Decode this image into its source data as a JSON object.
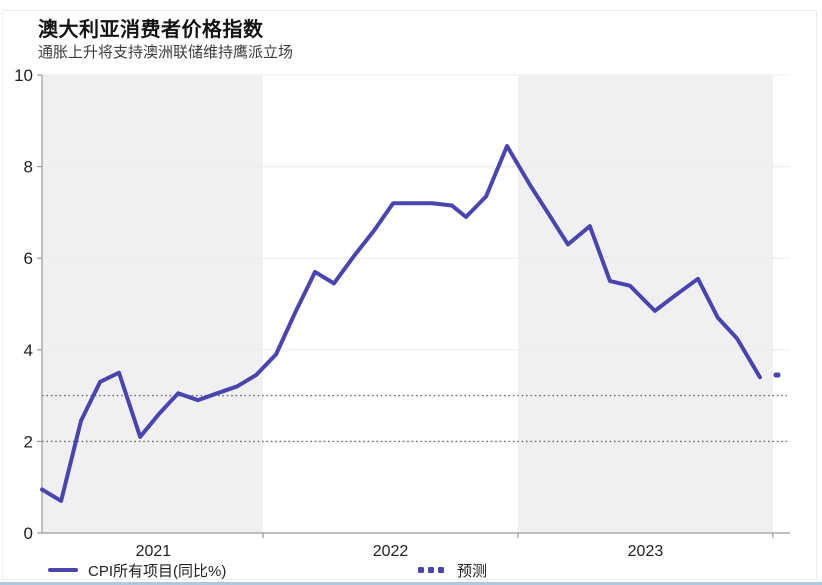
{
  "chart_data": {
    "type": "line",
    "title": "澳大利亚消费者价格指数",
    "subtitle": "通胀上升将支持澳洲联储维持鹰派立场",
    "ylabel": "",
    "xlabel": "",
    "ylim": [
      0,
      10
    ],
    "yticks": [
      0,
      2,
      4,
      6,
      8,
      10
    ],
    "x_range": [
      2021.133,
      2024.067
    ],
    "year_boundaries": [
      2022,
      2023,
      2024
    ],
    "xtick_labels": [
      {
        "label": "2021",
        "center": 2021.57
      },
      {
        "label": "2022",
        "center": 2022.5
      },
      {
        "label": "2023",
        "center": 2023.5
      }
    ],
    "year_bands": [
      [
        2021.133,
        2022
      ],
      [
        2023,
        2024
      ]
    ],
    "reference_lines": [
      2,
      3
    ],
    "grid": "faint-horizontal",
    "legend_position": "bottom",
    "colors": {
      "line": "#4a44b0",
      "band": "#f0f0f1",
      "reference": "#6e6e6e",
      "grid": "#ececec",
      "axis": "#9b9b9b",
      "tick_text": "#1f1f1f"
    },
    "series": [
      {
        "name": "CPI所有项目(同比%)",
        "style": "solid",
        "points": [
          [
            2021.133,
            0.95
          ],
          [
            2021.208,
            0.7
          ],
          [
            2021.286,
            2.45
          ],
          [
            2021.361,
            3.3
          ],
          [
            2021.435,
            3.5
          ],
          [
            2021.518,
            2.1
          ],
          [
            2021.592,
            2.6
          ],
          [
            2021.667,
            3.05
          ],
          [
            2021.745,
            2.9
          ],
          [
            2021.82,
            3.05
          ],
          [
            2021.898,
            3.2
          ],
          [
            2021.973,
            3.45
          ],
          [
            2022.051,
            3.9
          ],
          [
            2022.125,
            4.8
          ],
          [
            2022.204,
            5.7
          ],
          [
            2022.278,
            5.45
          ],
          [
            2022.357,
            6.05
          ],
          [
            2022.435,
            6.6
          ],
          [
            2022.51,
            7.2
          ],
          [
            2022.588,
            7.2
          ],
          [
            2022.663,
            7.2
          ],
          [
            2022.741,
            7.15
          ],
          [
            2022.796,
            6.9
          ],
          [
            2022.875,
            7.35
          ],
          [
            2022.957,
            8.45
          ],
          [
            2023.047,
            7.6
          ],
          [
            2023.122,
            6.95
          ],
          [
            2023.196,
            6.3
          ],
          [
            2023.282,
            6.7
          ],
          [
            2023.361,
            5.5
          ],
          [
            2023.439,
            5.4
          ],
          [
            2023.537,
            4.85
          ],
          [
            2023.62,
            5.2
          ],
          [
            2023.706,
            5.55
          ],
          [
            2023.784,
            4.7
          ],
          [
            2023.859,
            4.25
          ],
          [
            2023.949,
            3.4
          ]
        ]
      },
      {
        "name": "预测",
        "style": "dotted",
        "points": [
          [
            2024.016,
            3.45
          ]
        ]
      }
    ]
  },
  "page": {
    "bottom_strip_color": "#aec7e2"
  }
}
